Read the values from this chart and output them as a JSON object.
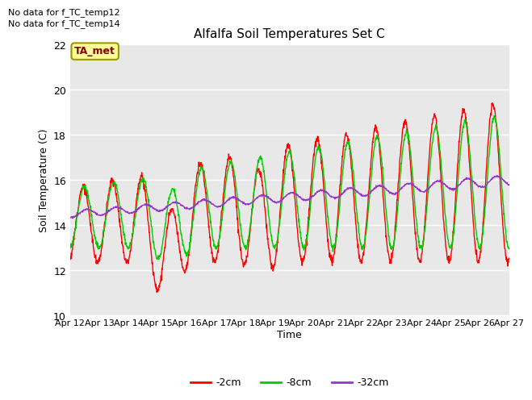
{
  "title": "Alfalfa Soil Temperatures Set C",
  "ylabel": "Soil Temperature (C)",
  "xlabel": "Time",
  "no_data_text": [
    "No data for f_TC_temp12",
    "No data for f_TC_temp14"
  ],
  "legend_label_text": "TA_met",
  "legend_entries": [
    "-2cm",
    "-8cm",
    "-32cm"
  ],
  "legend_colors": [
    "#ff0000",
    "#00cc00",
    "#9933cc"
  ],
  "line_colors": [
    "#ff0000",
    "#00cc00",
    "#9933cc"
  ],
  "ylim": [
    10,
    22
  ],
  "yticks": [
    10,
    12,
    14,
    16,
    18,
    20,
    22
  ],
  "xtick_labels": [
    "Apr 12",
    "Apr 13",
    "Apr 14",
    "Apr 15",
    "Apr 16",
    "Apr 17",
    "Apr 18",
    "Apr 19",
    "Apr 20",
    "Apr 21",
    "Apr 22",
    "Apr 23",
    "Apr 24",
    "Apr 25",
    "Apr 26",
    "Apr 27"
  ],
  "bg_color": "#e8e8e8",
  "grid_color": "#ffffff"
}
